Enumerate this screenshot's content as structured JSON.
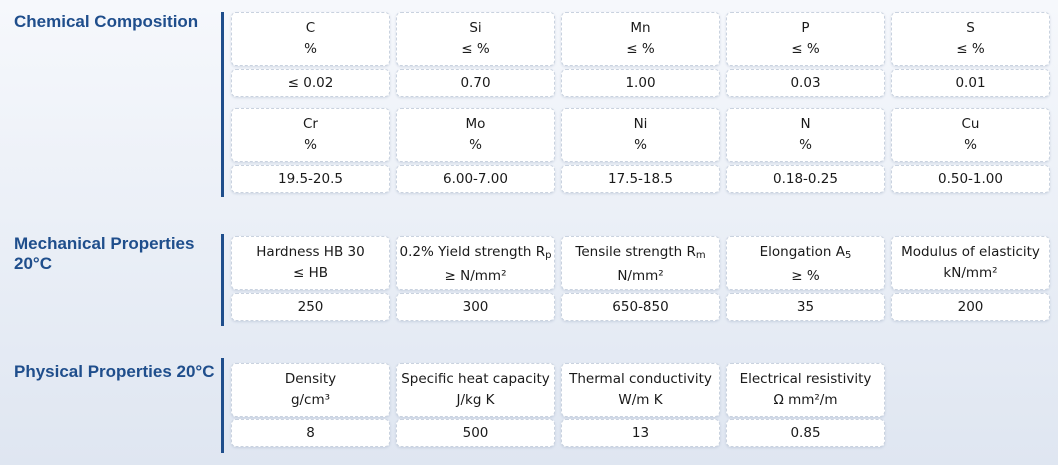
{
  "chemical": {
    "title": "Chemical Composition",
    "row1": [
      {
        "name": "C",
        "unit": "%",
        "value": "≤ 0.02"
      },
      {
        "name": "Si",
        "unit": "≤ %",
        "value": "0.70"
      },
      {
        "name": "Mn",
        "unit": "≤ %",
        "value": "1.00"
      },
      {
        "name": "P",
        "unit": "≤ %",
        "value": "0.03"
      },
      {
        "name": "S",
        "unit": "≤ %",
        "value": "0.01"
      }
    ],
    "row2": [
      {
        "name": "Cr",
        "unit": "%",
        "value": "19.5-20.5"
      },
      {
        "name": "Mo",
        "unit": "%",
        "value": "6.00-7.00"
      },
      {
        "name": "Ni",
        "unit": "%",
        "value": "17.5-18.5"
      },
      {
        "name": "N",
        "unit": "%",
        "value": "0.18-0.25"
      },
      {
        "name": "Cu",
        "unit": "%",
        "value": "0.50-1.00"
      }
    ]
  },
  "mechanical": {
    "title": "Mechanical Properties\n20°C",
    "items": [
      {
        "name": "Hardness HB 30",
        "sub": "",
        "unit": "≤ HB",
        "value": "250"
      },
      {
        "name": "0.2% Yield strength R",
        "sub": "p",
        "unit": "≥ N/mm²",
        "value": "300"
      },
      {
        "name": "Tensile strength R",
        "sub": "m",
        "unit": "N/mm²",
        "value": "650-850"
      },
      {
        "name": "Elongation A",
        "sub": "5",
        "unit": "≥ %",
        "value": "35"
      },
      {
        "name": "Modulus of elasticity",
        "sub": "",
        "unit": "kN/mm²",
        "value": "200"
      }
    ]
  },
  "physical": {
    "title": "Physical Properties 20°C",
    "items": [
      {
        "name": "Density",
        "unit": "g/cm³",
        "value": "8"
      },
      {
        "name": "Specific heat capacity",
        "unit": "J/kg K",
        "value": "500"
      },
      {
        "name": "Thermal conductivity",
        "unit": "W/m K",
        "value": "13"
      },
      {
        "name": "Electrical resistivity",
        "unit": "Ω mm²/m",
        "value": "0.85"
      }
    ]
  }
}
